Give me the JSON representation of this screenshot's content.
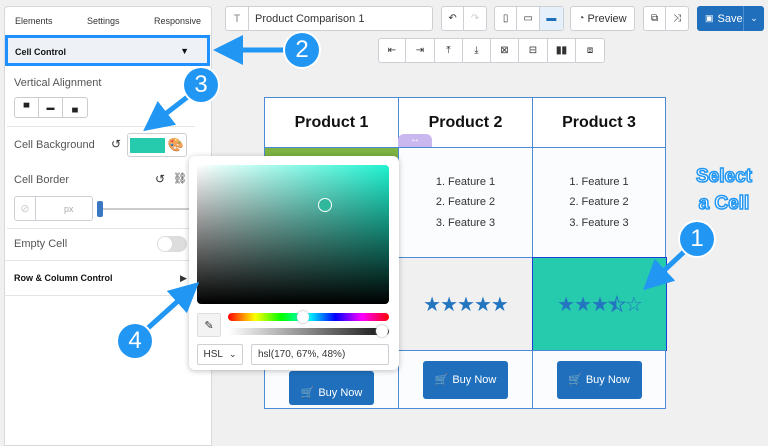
{
  "sidebar": {
    "tabs": [
      "Elements",
      "Settings",
      "Responsive"
    ],
    "cell_control": "Cell Control",
    "vertical_alignment": "Vertical Alignment",
    "cell_background": "Cell Background",
    "cell_background_color": "#26cbae",
    "cell_border": "Cell Border",
    "border_unit": "px",
    "empty_cell": "Empty Cell",
    "empty_cell_on": false,
    "row_column_control": "Row & Column Control"
  },
  "toolbar": {
    "title_value": "Product Comparison 1",
    "preview": "Preview",
    "save": "Save",
    "accent": "#1f6fbd"
  },
  "table": {
    "headers": [
      "Product 1",
      "Product 2",
      "Product 3"
    ],
    "features": [
      "1. Feature 1",
      "2. Feature 2",
      "3. Feature 3"
    ],
    "ratings": [
      null,
      5,
      3.5
    ],
    "buy_label": "Buy Now",
    "selected_color": "#26cbae",
    "product1_feature_bg": "#7cb342"
  },
  "picker": {
    "mode": "HSL",
    "value": "hsl(170, 67%, 48%)",
    "hue": 170,
    "alpha": 1
  },
  "annotations": {
    "badges": [
      "1",
      "2",
      "3",
      "4"
    ],
    "callout_line1": "Select",
    "callout_line2": "a Cell"
  }
}
